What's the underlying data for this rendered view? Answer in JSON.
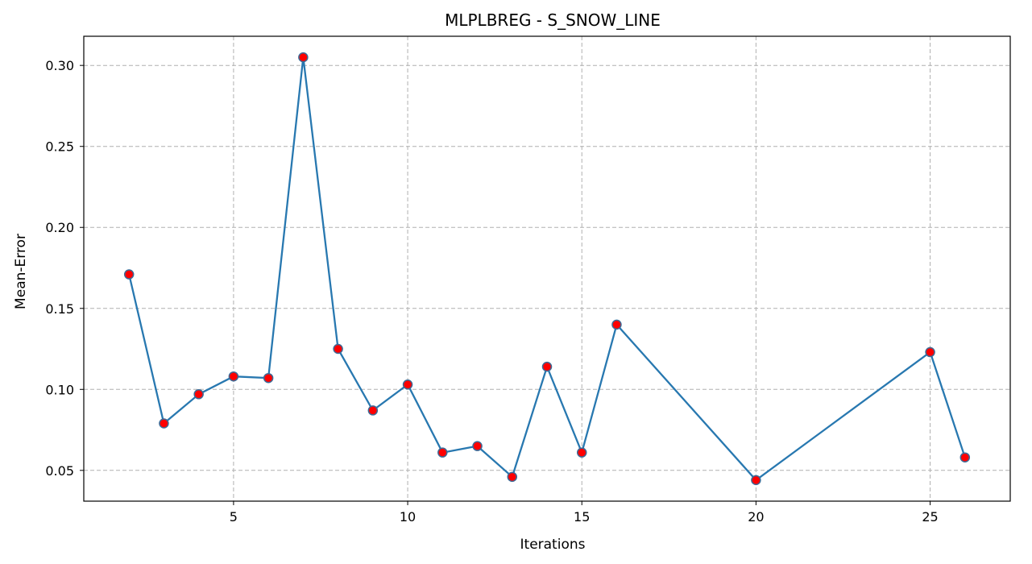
{
  "chart_data": {
    "type": "line",
    "title": "MLPLBREG - S_SNOW_LINE",
    "xlabel": "Iterations",
    "ylabel": "Mean-Error",
    "xlim": [
      0.7,
      27.3
    ],
    "ylim": [
      0.031,
      0.318
    ],
    "xticks": [
      5,
      10,
      15,
      20,
      25
    ],
    "yticks": [
      0.05,
      0.1,
      0.15,
      0.2,
      0.25,
      0.3
    ],
    "ytick_labels": [
      "0.05",
      "0.10",
      "0.15",
      "0.20",
      "0.25",
      "0.30"
    ],
    "grid": true,
    "series": [
      {
        "x": [
          2,
          3,
          4,
          5,
          6,
          7,
          8,
          9,
          10,
          11,
          12,
          13,
          14,
          15,
          16,
          20,
          25,
          26
        ],
        "y": [
          0.171,
          0.079,
          0.097,
          0.108,
          0.107,
          0.305,
          0.125,
          0.087,
          0.103,
          0.061,
          0.065,
          0.046,
          0.114,
          0.061,
          0.14,
          0.044,
          0.123,
          0.058
        ],
        "line_color": "#2878b0",
        "marker_color": "#ff0000",
        "marker_edge_color": "#3d6a96"
      }
    ]
  }
}
